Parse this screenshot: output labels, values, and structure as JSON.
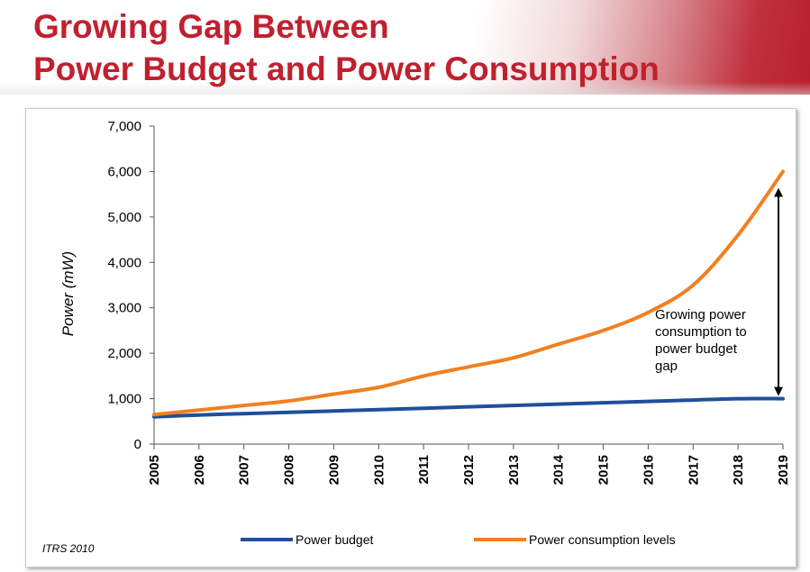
{
  "slide": {
    "title_line1": "Growing Gap Between",
    "title_line2": "Power Budget and Power Consumption",
    "title_color": "#c0212f",
    "source": "ITRS 2010"
  },
  "chart_data": {
    "type": "line",
    "title": "",
    "xlabel": "",
    "ylabel": "Power (mW)",
    "categories": [
      "2005",
      "2006",
      "2007",
      "2008",
      "2009",
      "2010",
      "2011",
      "2012",
      "2013",
      "2014",
      "2015",
      "2016",
      "2017",
      "2018",
      "2019"
    ],
    "ylim": [
      0,
      7000
    ],
    "yticks": [
      0,
      1000,
      2000,
      3000,
      4000,
      5000,
      6000,
      7000
    ],
    "ytick_labels": [
      "0",
      "1,000",
      "2,000",
      "3,000",
      "4,000",
      "5,000",
      "6,000",
      "7,000"
    ],
    "grid": false,
    "legend_position": "bottom",
    "series": [
      {
        "name": "Power budget",
        "color": "#1f4e9c",
        "values": [
          600,
          640,
          670,
          700,
          730,
          760,
          790,
          820,
          850,
          880,
          910,
          940,
          970,
          1000,
          1000
        ]
      },
      {
        "name": "Power consumption levels",
        "color": "#f08020",
        "values": [
          650,
          750,
          850,
          950,
          1100,
          1250,
          1500,
          1700,
          1900,
          2200,
          2500,
          2900,
          3500,
          4600,
          6000
        ]
      }
    ],
    "annotation": {
      "lines": [
        "Growing power",
        "consumption to",
        "power budget",
        "gap"
      ],
      "arrow_from": 1000,
      "arrow_to": 5700,
      "arrow_at": "2019"
    }
  }
}
